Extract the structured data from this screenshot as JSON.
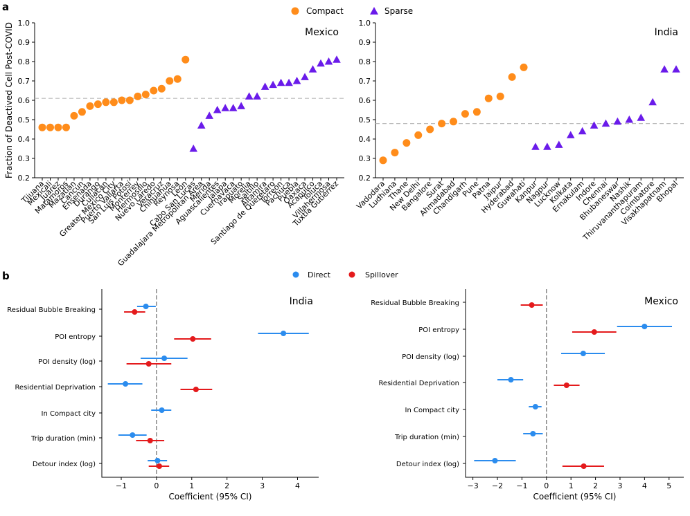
{
  "panel_a_label": "a",
  "panel_b_label": "b",
  "colors": {
    "compact": "#ff8c1a",
    "sparse": "#6a1bea",
    "direct": "#2b8cee",
    "spillover": "#e41a1c",
    "refline": "#bbbbbb"
  },
  "legend_a": {
    "compact": "Compact",
    "sparse": "Sparse"
  },
  "legend_b": {
    "direct": "Direct",
    "spillover": "Spillover"
  },
  "chart_data": [
    {
      "type": "scatter",
      "title": "Mexico",
      "ylabel": "Fraction of Deactived Cell Post-COVID",
      "ylim": [
        0.2,
        1.0
      ],
      "yticks": [
        "0.2",
        "0.3",
        "0.4",
        "0.5",
        "0.6",
        "0.7",
        "0.8",
        "0.9",
        "1.0"
      ],
      "mean_line": 0.61,
      "categories": [
        "Tijuana",
        "Mexicali",
        "Juárez",
        "Matamoros",
        "Mazatlán",
        "Cancún",
        "Ensenada",
        "Durango",
        "Culiacán",
        "Greater Mexico City",
        "Puerto Vallarta",
        "San Luis Potosí",
        "Monterrey",
        "Hermosillo",
        "Nuevo Laredo",
        "Veracruz",
        "Chihuahua",
        "Reynosa",
        "León",
        "Cabo San Lucas",
        "Guadalajara Metropolitan Area",
        "Mérida",
        "Aguascalientes",
        "Jalapa",
        "Cuernavaca",
        "Irapuato",
        "Morelia",
        "Saltillo",
        "Altamira",
        "Santiago de Querétaro",
        "Torreón",
        "Pachuca",
        "Puebla",
        "Oaxaca",
        "Acapulco",
        "Toluca",
        "Villahermosa",
        "Tuxtla Gutiérrez"
      ],
      "values": [
        0.46,
        0.46,
        0.46,
        0.46,
        0.52,
        0.54,
        0.57,
        0.58,
        0.59,
        0.59,
        0.6,
        0.6,
        0.62,
        0.63,
        0.65,
        0.66,
        0.7,
        0.71,
        0.81,
        0.35,
        0.47,
        0.52,
        0.55,
        0.56,
        0.56,
        0.57,
        0.62,
        0.62,
        0.67,
        0.68,
        0.69,
        0.69,
        0.7,
        0.72,
        0.76,
        0.79,
        0.8,
        0.81
      ],
      "groups": [
        "Compact",
        "Compact",
        "Compact",
        "Compact",
        "Compact",
        "Compact",
        "Compact",
        "Compact",
        "Compact",
        "Compact",
        "Compact",
        "Compact",
        "Compact",
        "Compact",
        "Compact",
        "Compact",
        "Compact",
        "Compact",
        "Compact",
        "Sparse",
        "Sparse",
        "Sparse",
        "Sparse",
        "Sparse",
        "Sparse",
        "Sparse",
        "Sparse",
        "Sparse",
        "Sparse",
        "Sparse",
        "Sparse",
        "Sparse",
        "Sparse",
        "Sparse",
        "Sparse",
        "Sparse",
        "Sparse",
        "Sparse"
      ]
    },
    {
      "type": "scatter",
      "title": "India",
      "ylim": [
        0.2,
        1.0
      ],
      "yticks": [
        "0.2",
        "0.3",
        "0.4",
        "0.5",
        "0.6",
        "0.7",
        "0.8",
        "0.9",
        "1.0"
      ],
      "mean_line": 0.48,
      "categories": [
        "Vadodara",
        "Ludhiana",
        "Thane",
        "New Delhi",
        "Bangalore",
        "Surat",
        "Ahmadabad",
        "Chandigarh",
        "Pune",
        "Patna",
        "Jaipur",
        "Hyderabad",
        "Guwahati",
        "Kanpur",
        "Nagpur",
        "Lucknow",
        "Kolkata",
        "Ernakulam",
        "Indore",
        "Chennai",
        "Bhubaneswar",
        "Nashik",
        "Thiruvananthapuram",
        "Coimbatore",
        "Visakhapatnam",
        "Bhopal"
      ],
      "values": [
        0.29,
        0.33,
        0.38,
        0.42,
        0.45,
        0.48,
        0.49,
        0.53,
        0.54,
        0.61,
        0.62,
        0.72,
        0.77,
        0.36,
        0.36,
        0.37,
        0.42,
        0.44,
        0.47,
        0.48,
        0.49,
        0.5,
        0.51,
        0.59,
        0.76,
        0.76
      ],
      "groups": [
        "Compact",
        "Compact",
        "Compact",
        "Compact",
        "Compact",
        "Compact",
        "Compact",
        "Compact",
        "Compact",
        "Compact",
        "Compact",
        "Compact",
        "Compact",
        "Sparse",
        "Sparse",
        "Sparse",
        "Sparse",
        "Sparse",
        "Sparse",
        "Sparse",
        "Sparse",
        "Sparse",
        "Sparse",
        "Sparse",
        "Sparse",
        "Sparse"
      ]
    },
    {
      "type": "forest",
      "title": "India",
      "xlabel": "Coefficient (95% CI)",
      "xlim": [
        -1.55,
        4.6
      ],
      "xticks": [
        -1,
        0,
        1,
        2,
        3,
        4
      ],
      "xtick_labels": [
        "−1",
        "0",
        "1",
        "2",
        "3",
        "4"
      ],
      "categories": [
        "Residual Bubble Breaking",
        "POI entropy",
        "POI density (log)",
        "Residential Deprivation",
        "In Compact city",
        "Trip duration (min)",
        "Detour index (log)"
      ],
      "series": [
        {
          "name": "Direct",
          "estimate": [
            -0.3,
            3.6,
            0.22,
            -0.88,
            0.15,
            -0.68,
            0.03
          ],
          "ci_low": [
            -0.55,
            2.88,
            -0.45,
            -1.38,
            -0.15,
            -1.08,
            -0.25
          ],
          "ci_high": [
            -0.02,
            4.32,
            0.88,
            -0.4,
            0.42,
            -0.28,
            0.3
          ]
        },
        {
          "name": "Spillover",
          "estimate": [
            -0.62,
            1.03,
            -0.22,
            1.12,
            null,
            -0.18,
            0.08
          ],
          "ci_low": [
            -0.92,
            0.5,
            -0.85,
            0.68,
            null,
            -0.58,
            -0.22
          ],
          "ci_high": [
            -0.32,
            1.55,
            0.42,
            1.58,
            null,
            0.22,
            0.36
          ]
        }
      ]
    },
    {
      "type": "forest",
      "title": "Mexico",
      "xlabel": "Coefficient (95% CI)",
      "xlim": [
        -3.3,
        5.6
      ],
      "xticks": [
        -3,
        -2,
        -1,
        0,
        1,
        2,
        3,
        4,
        5
      ],
      "xtick_labels": [
        "−3",
        "−2",
        "−1",
        "0",
        "1",
        "2",
        "3",
        "4",
        "5"
      ],
      "categories": [
        "Residual Bubble Breaking",
        "POI entropy",
        "POI density (log)",
        "Residential Deprivation",
        "In Compact city",
        "Trip duration (min)",
        "Detour index (log)"
      ],
      "series": [
        {
          "name": "Direct",
          "estimate": [
            null,
            4.0,
            1.5,
            -1.45,
            -0.45,
            -0.55,
            -2.1
          ],
          "ci_low": [
            null,
            2.88,
            0.6,
            -2.0,
            -0.72,
            -0.95,
            -2.95
          ],
          "ci_high": [
            null,
            5.12,
            2.38,
            -0.95,
            -0.2,
            -0.15,
            -1.25
          ]
        },
        {
          "name": "Spillover",
          "estimate": [
            -0.6,
            1.95,
            null,
            0.82,
            null,
            null,
            1.52
          ],
          "ci_low": [
            -1.05,
            1.05,
            null,
            0.3,
            null,
            null,
            0.65
          ],
          "ci_high": [
            -0.15,
            2.85,
            null,
            1.35,
            null,
            null,
            2.35
          ]
        }
      ]
    }
  ]
}
